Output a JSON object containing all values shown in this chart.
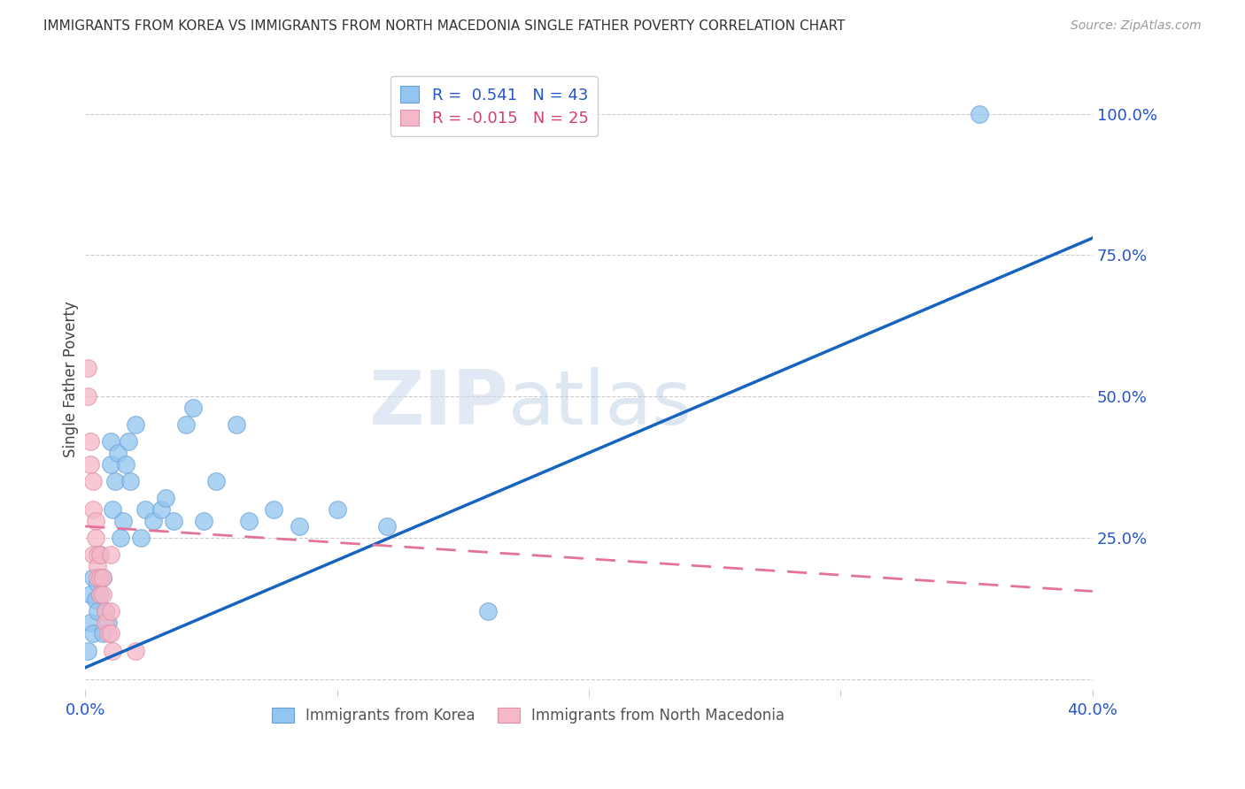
{
  "title": "IMMIGRANTS FROM KOREA VS IMMIGRANTS FROM NORTH MACEDONIA SINGLE FATHER POVERTY CORRELATION CHART",
  "source": "Source: ZipAtlas.com",
  "ylabel": "Single Father Poverty",
  "right_yticks": [
    0.0,
    0.25,
    0.5,
    0.75,
    1.0
  ],
  "right_yticklabels": [
    "",
    "25.0%",
    "50.0%",
    "75.0%",
    "100.0%"
  ],
  "korea_R": 0.541,
  "korea_N": 43,
  "macedonia_R": -0.015,
  "macedonia_N": 25,
  "korea_color": "#92C5F0",
  "macedonia_color": "#F5B8C8",
  "korea_line_color": "#1565C0",
  "macedonia_line_color": "#E57399",
  "background_color": "#FFFFFF",
  "watermark": "ZIPatlas",
  "xlim": [
    0.0,
    0.4
  ],
  "ylim": [
    -0.02,
    1.08
  ],
  "korea_line_x0": 0.0,
  "korea_line_y0": 0.02,
  "korea_line_x1": 0.4,
  "korea_line_y1": 0.78,
  "mac_line_x0": 0.0,
  "mac_line_y0": 0.27,
  "mac_line_x1": 0.4,
  "mac_line_y1": 0.155,
  "korea_x": [
    0.001,
    0.002,
    0.002,
    0.003,
    0.003,
    0.004,
    0.005,
    0.005,
    0.006,
    0.006,
    0.007,
    0.007,
    0.008,
    0.009,
    0.01,
    0.01,
    0.011,
    0.012,
    0.013,
    0.014,
    0.015,
    0.016,
    0.017,
    0.018,
    0.02,
    0.022,
    0.024,
    0.027,
    0.03,
    0.032,
    0.035,
    0.04,
    0.043,
    0.047,
    0.052,
    0.06,
    0.065,
    0.075,
    0.085,
    0.1,
    0.12,
    0.16,
    0.355
  ],
  "korea_y": [
    0.05,
    0.1,
    0.15,
    0.08,
    0.18,
    0.14,
    0.12,
    0.17,
    0.15,
    0.22,
    0.08,
    0.18,
    0.12,
    0.1,
    0.38,
    0.42,
    0.3,
    0.35,
    0.4,
    0.25,
    0.28,
    0.38,
    0.42,
    0.35,
    0.45,
    0.25,
    0.3,
    0.28,
    0.3,
    0.32,
    0.28,
    0.45,
    0.48,
    0.28,
    0.35,
    0.45,
    0.28,
    0.3,
    0.27,
    0.3,
    0.27,
    0.12,
    1.0
  ],
  "macedonia_x": [
    0.001,
    0.001,
    0.002,
    0.002,
    0.003,
    0.003,
    0.003,
    0.004,
    0.004,
    0.005,
    0.005,
    0.005,
    0.006,
    0.006,
    0.006,
    0.007,
    0.007,
    0.008,
    0.008,
    0.009,
    0.01,
    0.01,
    0.01,
    0.011,
    0.02
  ],
  "macedonia_y": [
    0.55,
    0.5,
    0.42,
    0.38,
    0.35,
    0.3,
    0.22,
    0.28,
    0.25,
    0.22,
    0.2,
    0.18,
    0.22,
    0.18,
    0.15,
    0.18,
    0.15,
    0.12,
    0.1,
    0.08,
    0.22,
    0.08,
    0.12,
    0.05,
    0.05
  ]
}
